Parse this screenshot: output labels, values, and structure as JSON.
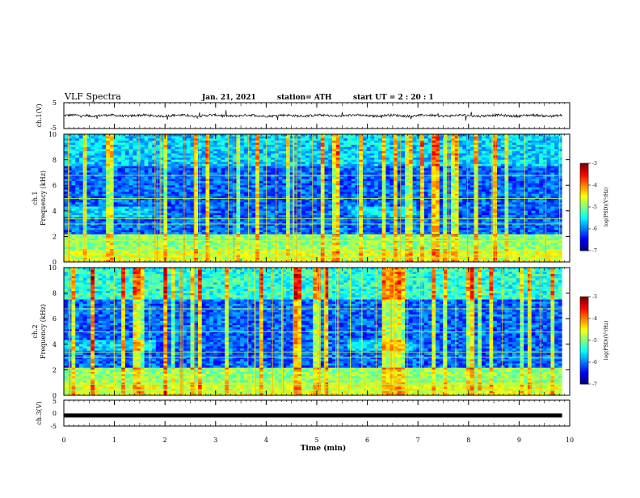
{
  "header": {
    "title": "VLF Spectra",
    "date": "Jan. 21, 2021",
    "station": "station= ATH",
    "start": "start  UT =   2 : 20 : 1"
  },
  "chart_data": [
    {
      "id": "ch1-waveform",
      "type": "line",
      "ylabel": "ch.1(V)",
      "ylim": [
        -5,
        5
      ],
      "yticks": [
        "5",
        "-5"
      ],
      "xlim": [
        0,
        10
      ],
      "x_end": 9.85,
      "trace_level": 0.0
    },
    {
      "id": "ch1-spectrogram",
      "type": "heatmap",
      "ylabel": "ch.1",
      "ylabel2": "Frequency  (kHz)",
      "ylim": [
        0,
        10
      ],
      "yticks": [
        "10",
        "8",
        "6",
        "4",
        "2",
        "0"
      ],
      "xlim": [
        0,
        10
      ],
      "x_end": 9.85,
      "colorbar": {
        "ticks": [
          "-3",
          "-4",
          "-5",
          "-6",
          "-7"
        ],
        "range": [
          -7,
          -3
        ],
        "label": "log(PSD)(V²/Hz)"
      }
    },
    {
      "id": "ch2-spectrogram",
      "type": "heatmap",
      "ylabel": "ch.2",
      "ylabel2": "Frequency  (kHz)",
      "ylim": [
        0,
        10
      ],
      "yticks": [
        "10",
        "8",
        "6",
        "4",
        "2",
        "0"
      ],
      "xlim": [
        0,
        10
      ],
      "x_end": 9.85,
      "colorbar": {
        "ticks": [
          "-3",
          "-4",
          "-5",
          "-6",
          "-7"
        ],
        "range": [
          -7,
          -3
        ],
        "label": "log(PSD)(V²/Hz)"
      }
    },
    {
      "id": "ch3-waveform",
      "type": "line",
      "ylabel": "ch.3(V)",
      "ylim": [
        -5,
        5
      ],
      "yticks": [
        "5",
        "0",
        "-5"
      ],
      "xlim": [
        0,
        10
      ],
      "x_end": 9.85,
      "trace_level": -0.9
    }
  ],
  "xaxis": {
    "label": "Time  (min)",
    "ticks": [
      "0",
      "1",
      "2",
      "3",
      "4",
      "5",
      "6",
      "7",
      "8",
      "9",
      "10"
    ]
  }
}
